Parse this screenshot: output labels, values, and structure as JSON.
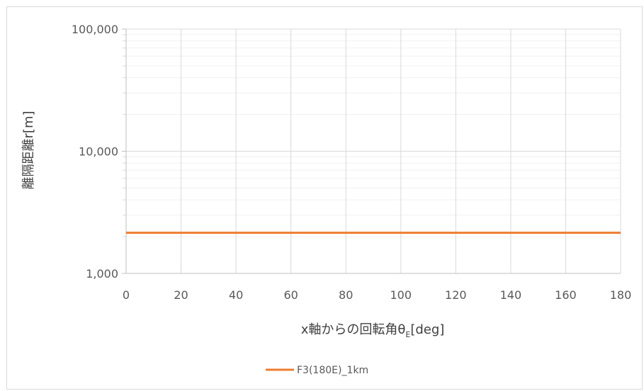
{
  "chart_data": {
    "type": "line",
    "title": "",
    "xlabel": "x軸からの回転角θ",
    "xlabel_sub": "E",
    "xlabel_suffix": "[deg]",
    "ylabel": "離隔距離r[m]",
    "x_scale": "linear",
    "y_scale": "log",
    "xlim": [
      0,
      180
    ],
    "ylim": [
      1000,
      100000
    ],
    "x_ticks": [
      0,
      20,
      40,
      60,
      80,
      100,
      120,
      140,
      160,
      180
    ],
    "x_tick_labels": [
      "0",
      "20",
      "40",
      "60",
      "80",
      "100",
      "120",
      "140",
      "160",
      "180"
    ],
    "y_ticks": [
      1000,
      10000,
      100000
    ],
    "y_tick_labels": [
      "1,000",
      "10,000",
      "100,000"
    ],
    "grid": true,
    "legend_position": "bottom",
    "series": [
      {
        "name": "F3(180E)_1km",
        "color": "#ED7D31",
        "x": [
          0,
          20,
          40,
          60,
          80,
          100,
          120,
          140,
          160,
          180
        ],
        "y": [
          2150,
          2150,
          2150,
          2150,
          2150,
          2150,
          2150,
          2150,
          2150,
          2150
        ]
      }
    ]
  }
}
